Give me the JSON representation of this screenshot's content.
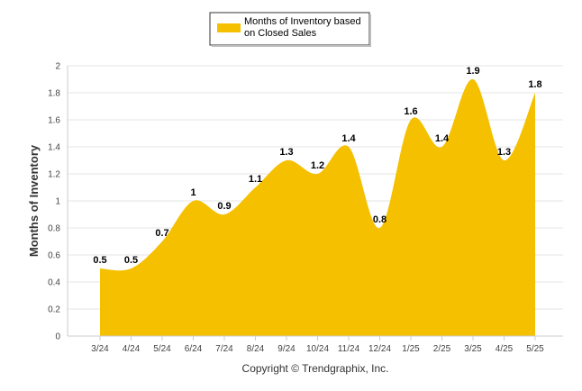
{
  "chart_data": {
    "type": "area",
    "categories": [
      "3/24",
      "4/24",
      "5/24",
      "6/24",
      "7/24",
      "8/24",
      "9/24",
      "10/24",
      "11/24",
      "12/24",
      "1/25",
      "2/25",
      "3/25",
      "4/25",
      "5/25"
    ],
    "series": [
      {
        "name": "Months of Inventory based on Closed Sales",
        "values": [
          0.5,
          0.5,
          0.7,
          1,
          0.9,
          1.1,
          1.3,
          1.2,
          1.4,
          0.8,
          1.6,
          1.4,
          1.9,
          1.3,
          1.8
        ],
        "labels": [
          "0.5",
          "0.5",
          "0.7",
          "1",
          "0.9",
          "1.1",
          "1.3",
          "1.2",
          "1.4",
          "0.8",
          "1.6",
          "1.4",
          "1.9",
          "1.3",
          "1.8"
        ],
        "color": "#F5C000"
      }
    ],
    "ylabel": "Months of Inventory",
    "xlabel": "",
    "ylim": [
      0,
      2
    ],
    "yticks": [
      "0",
      "0.2",
      "0.4",
      "0.6",
      "0.8",
      "1",
      "1.2",
      "1.4",
      "1.6",
      "1.8",
      "2"
    ],
    "grid": true,
    "legend_position": "top-center"
  },
  "legend": {
    "line1": "Months of Inventory based",
    "line2": "on Closed Sales",
    "swatch_color": "#F5C000"
  },
  "footer": {
    "copyright": "Copyright © Trendgraphix, Inc."
  }
}
